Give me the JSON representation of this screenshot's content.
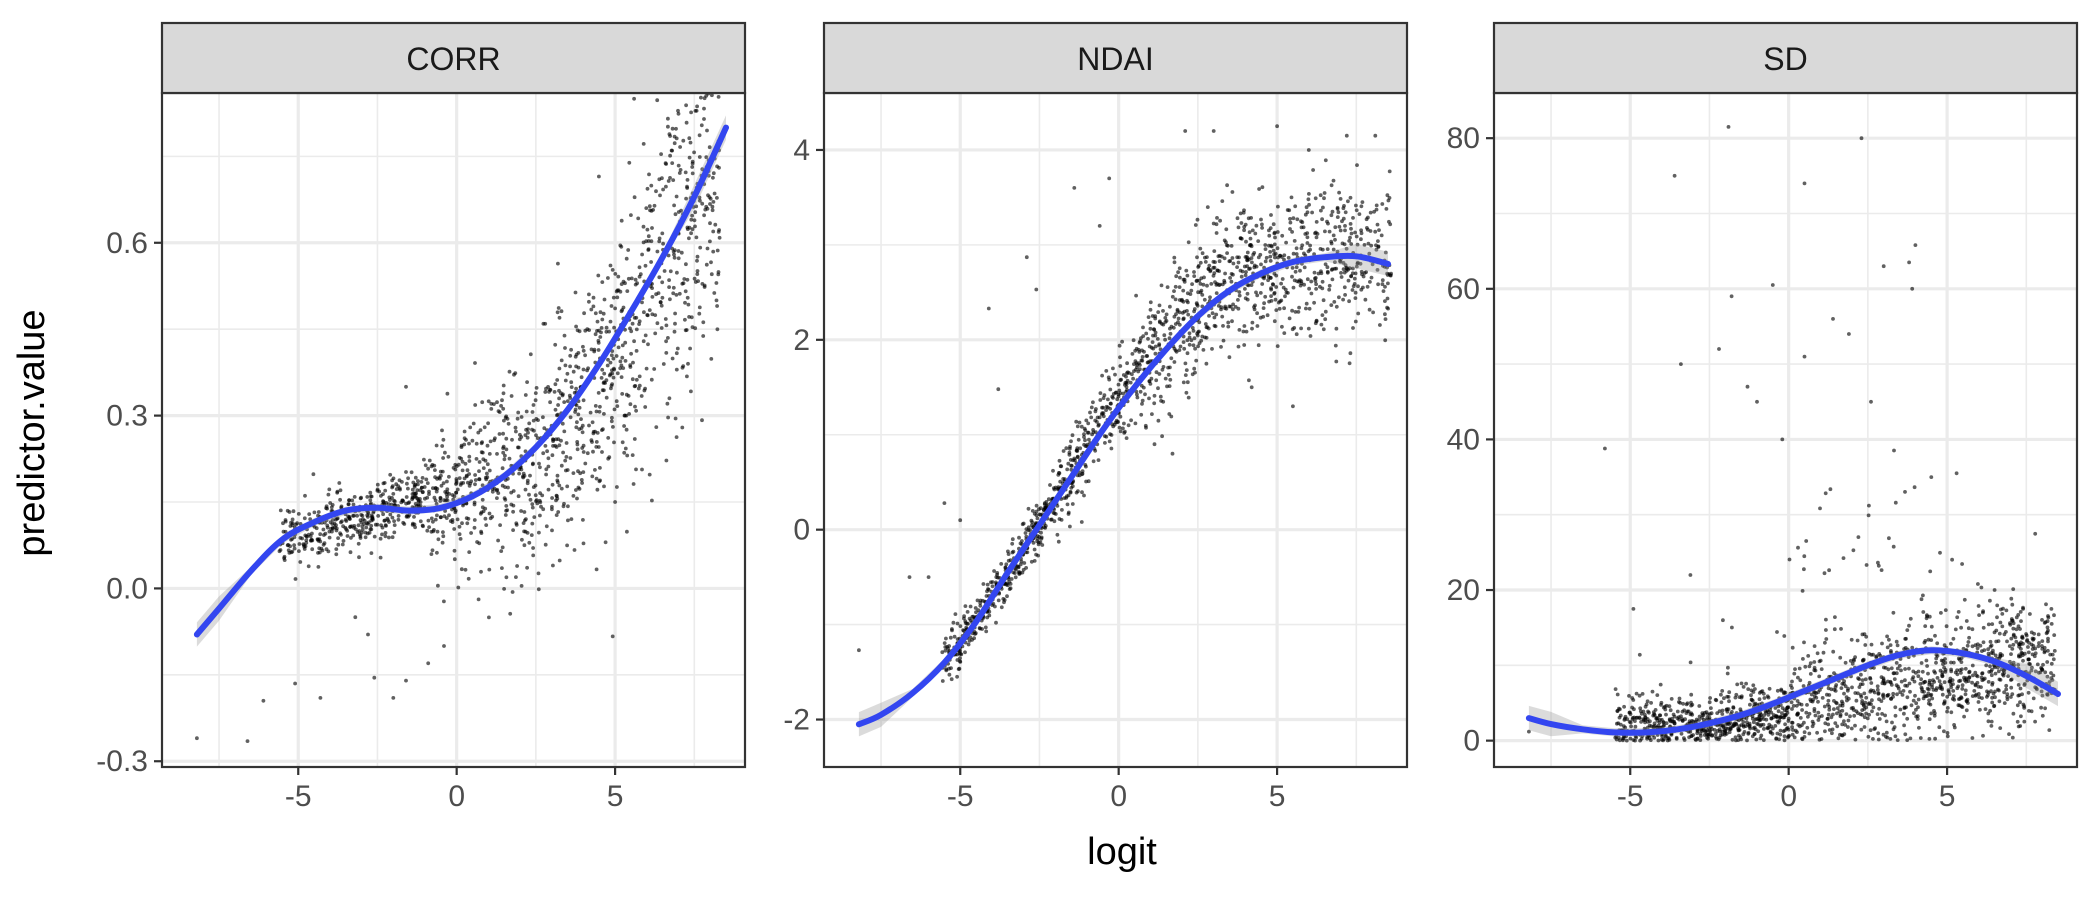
{
  "chart_data": {
    "type": "scatter",
    "xlabel": "logit",
    "ylabel": "predictor.value",
    "colors": {
      "points": "#000000",
      "smooth_line": "#3346f0",
      "confidence_band": "#999999",
      "strip": "#d9d9d9",
      "grid": "#ebebeb"
    },
    "grid": true,
    "panels": [
      {
        "title": "CORR",
        "xlim": [
          -9.3,
          9.1
        ],
        "ylim": [
          -0.31,
          0.86
        ],
        "x_ticks": [
          -5,
          0,
          5
        ],
        "x_tick_labels": [
          "-5",
          "0",
          "5"
        ],
        "y_ticks": [
          -0.3,
          0.0,
          0.3,
          0.6
        ],
        "y_tick_labels": [
          "-0.3",
          "0.0",
          "0.3",
          "0.6"
        ],
        "smooth": [
          [
            -8.2,
            -0.08
          ],
          [
            -7.5,
            -0.035
          ],
          [
            -6.5,
            0.03
          ],
          [
            -5.5,
            0.085
          ],
          [
            -4.5,
            0.115
          ],
          [
            -3.5,
            0.135
          ],
          [
            -2.5,
            0.14
          ],
          [
            -1.5,
            0.135
          ],
          [
            -0.5,
            0.14
          ],
          [
            0.5,
            0.16
          ],
          [
            1.5,
            0.195
          ],
          [
            2.5,
            0.245
          ],
          [
            3.5,
            0.31
          ],
          [
            4.5,
            0.39
          ],
          [
            5.5,
            0.48
          ],
          [
            6.5,
            0.575
          ],
          [
            7.5,
            0.68
          ],
          [
            8.5,
            0.8
          ]
        ],
        "cluster_points": 1500,
        "outliers": [
          [
            -8.2,
            -0.26
          ],
          [
            -6.6,
            -0.265
          ],
          [
            -5.1,
            -0.165
          ],
          [
            -4.3,
            -0.19
          ],
          [
            -6.1,
            -0.195
          ],
          [
            -2.6,
            -0.155
          ],
          [
            -2.0,
            -0.19
          ],
          [
            -1.6,
            -0.16
          ],
          [
            -0.9,
            -0.13
          ],
          [
            -2.8,
            -0.08
          ],
          [
            -3.2,
            -0.05
          ],
          [
            -1.6,
            0.35
          ],
          [
            5.6,
            0.85
          ],
          [
            6.8,
            0.76
          ],
          [
            8.2,
            0.5
          ],
          [
            7.3,
            0.39
          ],
          [
            6.3,
            0.28
          ],
          [
            4.7,
            0.08
          ],
          [
            -0.4,
            -0.1
          ],
          [
            3.9,
            0.2
          ],
          [
            5.0,
            0.15
          ]
        ]
      },
      {
        "title": "NDAI",
        "xlim": [
          -9.3,
          9.1
        ],
        "ylim": [
          -2.5,
          4.6
        ],
        "x_ticks": [
          -5,
          0,
          5
        ],
        "x_tick_labels": [
          "-5",
          "0",
          "5"
        ],
        "y_ticks": [
          -2,
          0,
          2,
          4
        ],
        "y_tick_labels": [
          "-2",
          "0",
          "2",
          "4"
        ],
        "smooth": [
          [
            -8.2,
            -2.05
          ],
          [
            -7.5,
            -1.95
          ],
          [
            -6.5,
            -1.72
          ],
          [
            -5.5,
            -1.4
          ],
          [
            -4.5,
            -0.97
          ],
          [
            -3.5,
            -0.45
          ],
          [
            -2.5,
            0.05
          ],
          [
            -1.5,
            0.55
          ],
          [
            -0.5,
            1.05
          ],
          [
            0.5,
            1.5
          ],
          [
            1.5,
            1.9
          ],
          [
            2.5,
            2.25
          ],
          [
            3.5,
            2.52
          ],
          [
            4.5,
            2.7
          ],
          [
            5.5,
            2.82
          ],
          [
            6.5,
            2.87
          ],
          [
            7.5,
            2.88
          ],
          [
            8.5,
            2.8
          ]
        ],
        "cluster_points": 1500,
        "outliers": [
          [
            -8.2,
            -1.27
          ],
          [
            -6.6,
            -0.5
          ],
          [
            -6.0,
            -0.5
          ],
          [
            -5.5,
            0.28
          ],
          [
            -5.0,
            0.1
          ],
          [
            -4.1,
            2.33
          ],
          [
            -5.1,
            -1.55
          ],
          [
            -3.8,
            1.48
          ],
          [
            -2.9,
            2.87
          ],
          [
            -2.6,
            2.53
          ],
          [
            -1.4,
            3.6
          ],
          [
            -0.3,
            3.7
          ],
          [
            2.1,
            4.2
          ],
          [
            3.0,
            4.2
          ],
          [
            5.0,
            4.25
          ],
          [
            6.0,
            4.0
          ],
          [
            7.2,
            4.15
          ],
          [
            8.1,
            4.15
          ],
          [
            8.3,
            3.1
          ],
          [
            5.5,
            1.3
          ],
          [
            4.2,
            1.5
          ],
          [
            1.7,
            0.8
          ],
          [
            -0.6,
            3.2
          ]
        ]
      },
      {
        "title": "SD",
        "xlim": [
          -9.3,
          9.1
        ],
        "ylim": [
          -3.5,
          86
        ],
        "x_ticks": [
          -5,
          0,
          5
        ],
        "x_tick_labels": [
          "-5",
          "0",
          "5"
        ],
        "y_ticks": [
          0,
          20,
          40,
          60,
          80
        ],
        "y_tick_labels": [
          "0",
          "20",
          "40",
          "60",
          "80"
        ],
        "smooth": [
          [
            -8.2,
            3.0
          ],
          [
            -7.5,
            2.2
          ],
          [
            -6.5,
            1.5
          ],
          [
            -5.5,
            1.1
          ],
          [
            -4.5,
            1.1
          ],
          [
            -3.5,
            1.5
          ],
          [
            -2.5,
            2.3
          ],
          [
            -1.5,
            3.4
          ],
          [
            -0.5,
            4.9
          ],
          [
            0.5,
            6.6
          ],
          [
            1.5,
            8.3
          ],
          [
            2.5,
            10.0
          ],
          [
            3.5,
            11.4
          ],
          [
            4.5,
            12.0
          ],
          [
            5.5,
            11.6
          ],
          [
            6.5,
            10.5
          ],
          [
            7.5,
            8.6
          ],
          [
            8.5,
            6.2
          ]
        ],
        "cluster_points": 1600,
        "outliers": [
          [
            -5.8,
            38.8
          ],
          [
            -3.6,
            75
          ],
          [
            -1.9,
            81.5
          ],
          [
            0.5,
            74
          ],
          [
            2.3,
            80
          ],
          [
            3.0,
            63
          ],
          [
            3.8,
            63.5
          ],
          [
            3.9,
            60
          ],
          [
            4.0,
            65.8
          ],
          [
            -3.4,
            50
          ],
          [
            -2.2,
            52
          ],
          [
            -1.8,
            59
          ],
          [
            -0.5,
            60.5
          ],
          [
            -1.3,
            47
          ],
          [
            0.5,
            51
          ],
          [
            1.4,
            56
          ],
          [
            1.9,
            54
          ],
          [
            -0.2,
            40
          ],
          [
            -1.0,
            45
          ],
          [
            2.6,
            45
          ],
          [
            4.5,
            35
          ],
          [
            5.3,
            35.5
          ],
          [
            6.5,
            20
          ],
          [
            7.4,
            17.5
          ],
          [
            8.3,
            15.5
          ],
          [
            -8.2,
            1.2
          ],
          [
            -6.7,
            1.5
          ],
          [
            -4.9,
            17.5
          ],
          [
            -3.1,
            22
          ]
        ]
      }
    ]
  }
}
